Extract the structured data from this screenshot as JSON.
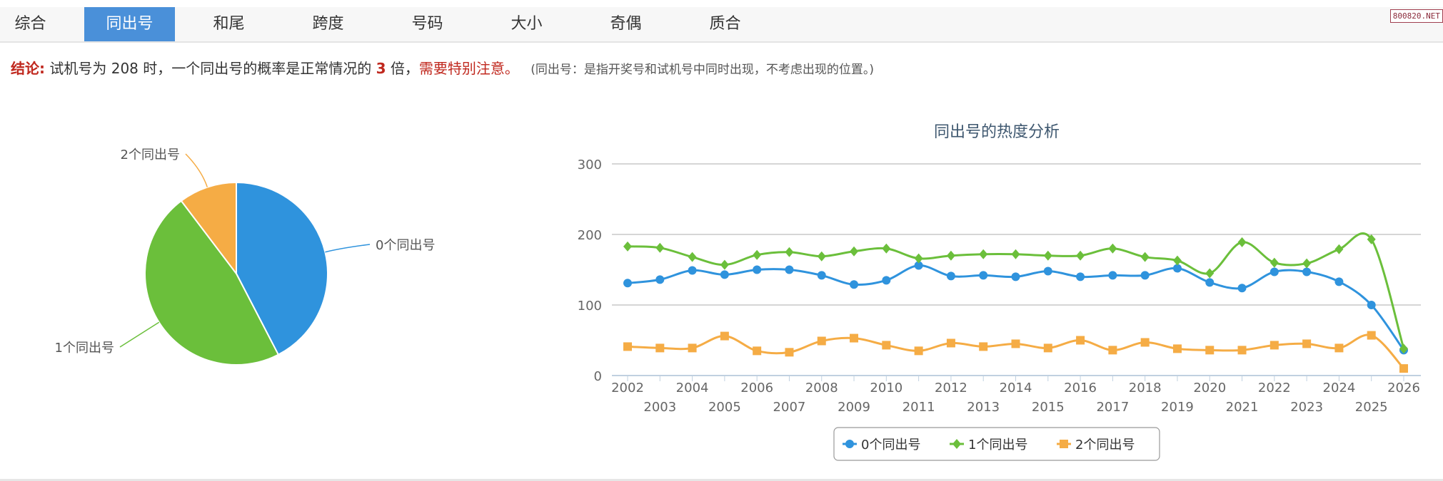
{
  "tabs": [
    {
      "label": "综合"
    },
    {
      "label": "同出号",
      "active": true
    },
    {
      "label": "和尾"
    },
    {
      "label": "跨度"
    },
    {
      "label": "号码"
    },
    {
      "label": "大小"
    },
    {
      "label": "奇偶"
    },
    {
      "label": "质合"
    }
  ],
  "watermark": "800820.NET",
  "conclusion": {
    "label": "结论:",
    "text1": "试机号为 208 时，一个同出号的概率是正常情况的 ",
    "multiple": "3",
    "text2": " 倍，",
    "warning": "需要特别注意。",
    "note": "(同出号：是指开奖号和试机号中同时出现，不考虑出现的位置。)"
  },
  "colors": {
    "s0": "#2f93dd",
    "s1": "#6bbf3b",
    "s2": "#f5ac45",
    "accent": "#4a90d9",
    "warn": "#c0281e"
  },
  "chart_data": [
    {
      "type": "pie",
      "title": "",
      "slices": [
        {
          "label": "0个同出号",
          "value": 42.4
        },
        {
          "label": "1个同出号",
          "value": 47.3
        },
        {
          "label": "2个同出号",
          "value": 10.3
        }
      ]
    },
    {
      "type": "line",
      "title": "同出号的热度分析",
      "ylim": [
        0,
        300
      ],
      "yticks": [
        "0",
        "100",
        "200",
        "300"
      ],
      "grid": true,
      "legend": "bottom",
      "x": [
        "2002",
        "2003",
        "2004",
        "2005",
        "2006",
        "2007",
        "2008",
        "2009",
        "2010",
        "2011",
        "2012",
        "2013",
        "2014",
        "2015",
        "2016",
        "2017",
        "2018",
        "2019",
        "2020",
        "2021",
        "2022",
        "2023",
        "2024",
        "2025",
        "2026"
      ],
      "series": [
        {
          "name": "0个同出号",
          "marker": "circle",
          "values": [
            131,
            136,
            149,
            143,
            150,
            150,
            142,
            129,
            135,
            156,
            141,
            142,
            140,
            148,
            140,
            142,
            142,
            152,
            132,
            124,
            147,
            147,
            133,
            100,
            36
          ]
        },
        {
          "name": "1个同出号",
          "marker": "diamond",
          "values": [
            183,
            181,
            168,
            157,
            171,
            175,
            169,
            176,
            180,
            166,
            170,
            172,
            172,
            170,
            170,
            180,
            168,
            163,
            145,
            189,
            160,
            159,
            179,
            193,
            38
          ]
        },
        {
          "name": "2个同出号",
          "marker": "square",
          "values": [
            41,
            39,
            39,
            56,
            35,
            33,
            49,
            53,
            43,
            35,
            46,
            41,
            45,
            39,
            50,
            36,
            47,
            38,
            36,
            36,
            43,
            45,
            39,
            57,
            10
          ]
        }
      ]
    }
  ]
}
